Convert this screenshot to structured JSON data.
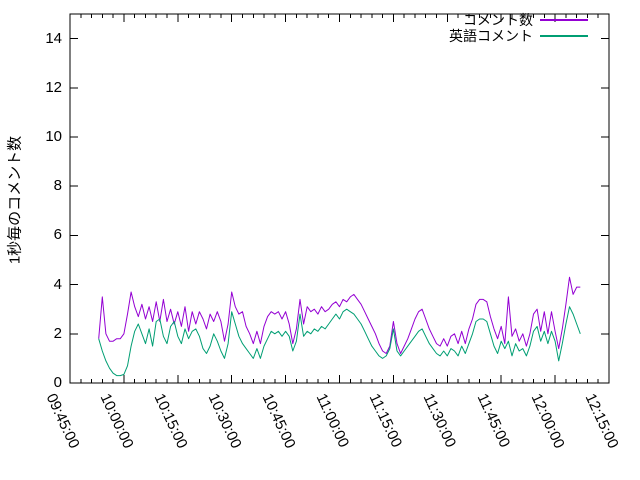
{
  "canvas": {
    "background_color": "#ffffff",
    "axis_color": "#000000"
  },
  "legend": {
    "items": [
      {
        "label": "コメント数",
        "color": "#9400d3"
      },
      {
        "label": "英語コメント",
        "color": "#009e73"
      }
    ]
  },
  "chart_data": {
    "type": "line",
    "title": "",
    "xlabel": "",
    "ylabel": "1秒毎のコメント数",
    "x_unit": "minutes after 09:45:00",
    "xlim": [
      0,
      150
    ],
    "ylim": [
      0,
      15
    ],
    "grid": false,
    "legend_position": "top-right",
    "x_tick_minutes": [
      0,
      15,
      30,
      45,
      60,
      75,
      90,
      105,
      120,
      135,
      150
    ],
    "x_tick_labels": [
      "09:45:00",
      "10:00:00",
      "10:15:00",
      "10:30:00",
      "10:45:00",
      "11:00:00",
      "11:15:00",
      "11:30:00",
      "11:45:00",
      "12:00:00",
      "12:15:00"
    ],
    "x_minor_step_minutes": 3,
    "y_ticks": [
      0,
      2,
      4,
      6,
      8,
      10,
      12,
      14
    ],
    "x": [
      8,
      9,
      10,
      11,
      12,
      13,
      14,
      15,
      16,
      17,
      18,
      19,
      20,
      21,
      22,
      23,
      24,
      25,
      26,
      27,
      28,
      29,
      30,
      31,
      32,
      33,
      34,
      35,
      36,
      37,
      38,
      39,
      40,
      41,
      42,
      43,
      44,
      45,
      46,
      47,
      48,
      49,
      50,
      51,
      52,
      53,
      54,
      55,
      56,
      57,
      58,
      59,
      60,
      61,
      62,
      63,
      64,
      65,
      66,
      67,
      68,
      69,
      70,
      71,
      72,
      73,
      74,
      75,
      76,
      77,
      78,
      79,
      80,
      81,
      82,
      83,
      84,
      85,
      86,
      87,
      88,
      89,
      90,
      91,
      92,
      93,
      94,
      95,
      96,
      97,
      98,
      99,
      100,
      101,
      102,
      103,
      104,
      105,
      106,
      107,
      108,
      109,
      110,
      111,
      112,
      113,
      114,
      115,
      116,
      117,
      118,
      119,
      120,
      121,
      122,
      123,
      124,
      125,
      126,
      127,
      128,
      129,
      130,
      131,
      132,
      133,
      134,
      135,
      136,
      137,
      138,
      139,
      140,
      141,
      142
    ],
    "series": [
      {
        "name": "コメント数",
        "color": "#9400d3",
        "values": [
          1.8,
          3.5,
          2.0,
          1.7,
          1.7,
          1.8,
          1.8,
          2.0,
          2.8,
          3.7,
          3.1,
          2.7,
          3.2,
          2.6,
          3.1,
          2.5,
          3.3,
          2.5,
          3.4,
          2.5,
          3.0,
          2.4,
          2.9,
          2.3,
          3.1,
          2.1,
          2.9,
          2.4,
          2.9,
          2.6,
          2.2,
          2.8,
          2.5,
          2.9,
          2.5,
          1.7,
          2.4,
          3.7,
          3.1,
          2.8,
          2.9,
          2.3,
          2.0,
          1.6,
          2.1,
          1.6,
          2.3,
          2.7,
          2.9,
          2.8,
          2.9,
          2.6,
          2.9,
          2.4,
          1.6,
          2.2,
          3.4,
          2.4,
          3.1,
          2.9,
          3.0,
          2.8,
          3.1,
          2.9,
          3.0,
          3.2,
          3.3,
          3.1,
          3.4,
          3.3,
          3.5,
          3.6,
          3.4,
          3.2,
          2.9,
          2.6,
          2.3,
          2.0,
          1.6,
          1.3,
          1.2,
          1.5,
          2.5,
          1.6,
          1.2,
          1.5,
          1.8,
          2.2,
          2.6,
          2.9,
          3.0,
          2.6,
          2.2,
          1.9,
          1.6,
          1.5,
          1.8,
          1.5,
          1.9,
          2.0,
          1.6,
          2.1,
          1.6,
          2.2,
          2.6,
          3.2,
          3.4,
          3.4,
          3.3,
          2.7,
          2.2,
          1.8,
          2.3,
          1.6,
          3.5,
          1.9,
          2.2,
          1.7,
          2.0,
          1.5,
          2.0,
          2.8,
          3.0,
          2.1,
          2.9,
          2.0,
          2.9,
          2.1,
          1.4,
          2.2,
          3.2,
          4.3,
          3.6,
          3.9,
          3.9
        ]
      },
      {
        "name": "英語コメント",
        "color": "#009e73",
        "values": [
          1.8,
          1.3,
          0.9,
          0.6,
          0.4,
          0.3,
          0.3,
          0.35,
          0.7,
          1.5,
          2.1,
          2.4,
          2.0,
          1.6,
          2.2,
          1.5,
          2.5,
          2.6,
          1.9,
          1.6,
          2.3,
          2.5,
          1.9,
          1.6,
          2.2,
          1.8,
          2.1,
          2.2,
          1.9,
          1.4,
          1.2,
          1.5,
          2.0,
          1.7,
          1.3,
          1.0,
          1.6,
          2.9,
          2.4,
          1.9,
          1.6,
          1.4,
          1.2,
          1.0,
          1.4,
          1.0,
          1.5,
          1.8,
          2.1,
          2.0,
          2.1,
          1.9,
          2.1,
          1.9,
          1.3,
          1.7,
          2.8,
          1.9,
          2.1,
          2.0,
          2.2,
          2.1,
          2.3,
          2.2,
          2.4,
          2.6,
          2.8,
          2.6,
          2.9,
          3.0,
          2.9,
          2.8,
          2.6,
          2.4,
          2.1,
          1.8,
          1.5,
          1.3,
          1.1,
          1.0,
          1.1,
          1.4,
          2.2,
          1.3,
          1.1,
          1.3,
          1.5,
          1.7,
          1.9,
          2.1,
          2.2,
          1.9,
          1.6,
          1.4,
          1.2,
          1.1,
          1.3,
          1.1,
          1.4,
          1.3,
          1.1,
          1.5,
          1.2,
          1.6,
          2.0,
          2.5,
          2.6,
          2.6,
          2.5,
          2.0,
          1.5,
          1.2,
          1.7,
          1.4,
          1.7,
          1.1,
          1.6,
          1.3,
          1.4,
          1.1,
          1.5,
          2.1,
          2.3,
          1.7,
          2.1,
          1.6,
          2.1,
          1.7,
          0.9,
          1.6,
          2.4,
          3.1,
          2.8,
          2.4,
          2.0
        ]
      }
    ]
  }
}
